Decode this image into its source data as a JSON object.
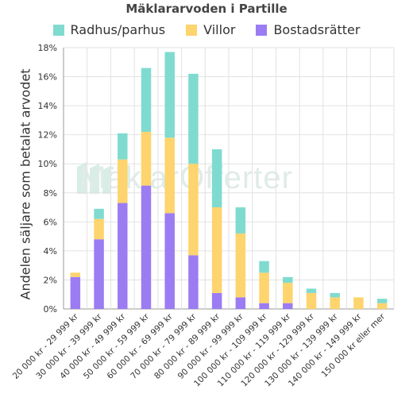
{
  "chart_data": {
    "type": "bar",
    "stacked": true,
    "title": "Mäklararvoden i Partille",
    "xlabel": "",
    "ylabel": "Andelen säljare som betalat arvodet",
    "ylim": [
      0,
      18
    ],
    "yticks": [
      "0%",
      "2%",
      "4%",
      "6%",
      "8%",
      "10%",
      "12%",
      "14%",
      "16%",
      "18%"
    ],
    "grid": true,
    "legend_position": "top",
    "watermark": "MäklarOfferter",
    "categories": [
      "20 000 kr - 29 999 kr",
      "30 000 kr - 39 999 kr",
      "40 000 kr - 49 999 kr",
      "50 000 kr - 59 999 kr",
      "60 000 kr - 69 999 kr",
      "70 000 kr - 79 999 kr",
      "80 000 kr - 89 999 kr",
      "90 000 kr - 99 999 kr",
      "100 000 kr - 109 999 kr",
      "110 000 kr - 119 999 kr",
      "120 000 kr - 129 999 kr",
      "130 000 kr - 139 999 kr",
      "140 000 kr - 149 999 kr",
      "150 000 kr eller mer"
    ],
    "series": [
      {
        "name": "Bostadsrätter",
        "color": "#9b7cf2",
        "values": [
          2.2,
          4.8,
          7.3,
          8.5,
          6.6,
          3.7,
          1.1,
          0.8,
          0.4,
          0.4,
          0,
          0,
          0,
          0
        ]
      },
      {
        "name": "Villor",
        "color": "#fdd46d",
        "values": [
          0.3,
          1.4,
          3.0,
          3.7,
          5.2,
          6.3,
          5.9,
          4.4,
          2.1,
          1.4,
          1.1,
          0.8,
          0.8,
          0.4
        ]
      },
      {
        "name": "Radhus/parhus",
        "color": "#7fdbcf",
        "values": [
          0,
          0.7,
          1.8,
          4.4,
          5.9,
          6.2,
          4.0,
          1.8,
          0.8,
          0.4,
          0.3,
          0.3,
          0,
          0.3
        ]
      }
    ],
    "legend_order": [
      "Radhus/parhus",
      "Villor",
      "Bostadsrätter"
    ]
  }
}
